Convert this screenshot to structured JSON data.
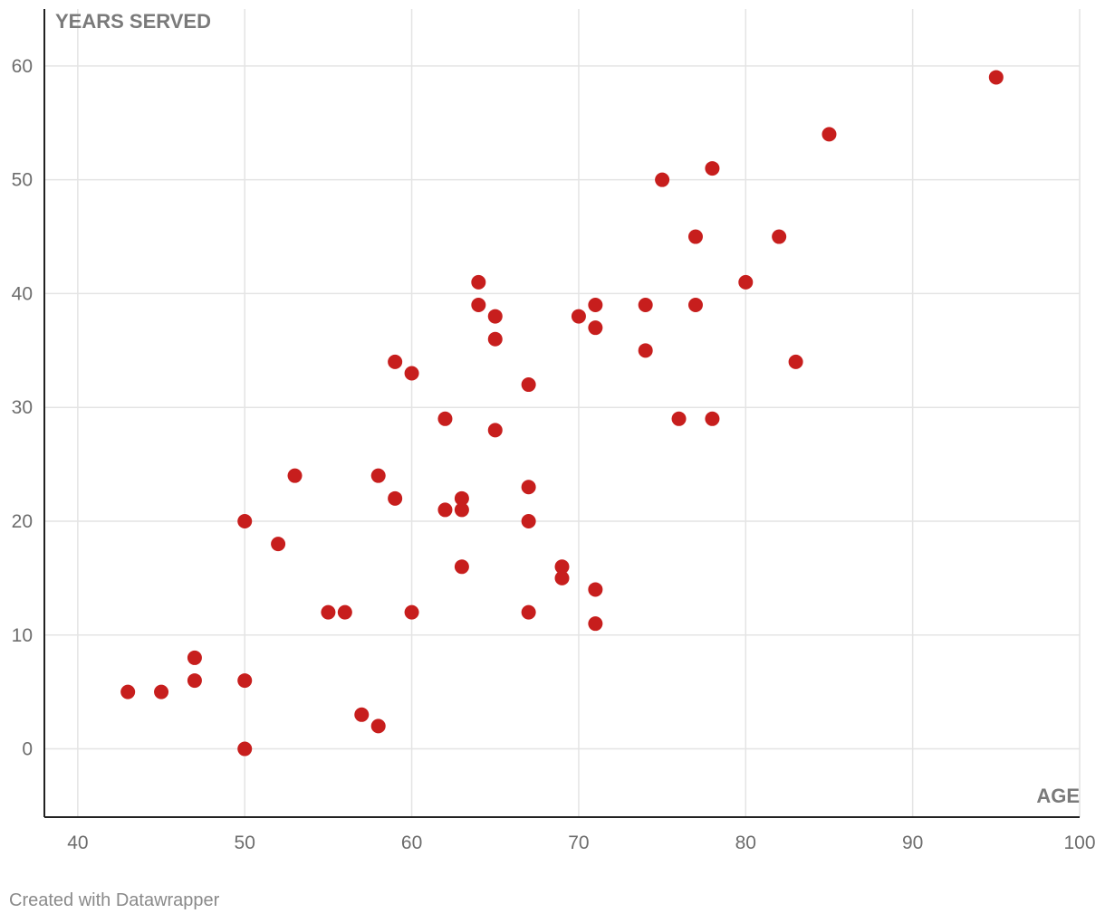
{
  "chart_data": {
    "type": "scatter",
    "title": "",
    "xlabel": "AGE",
    "ylabel": "YEARS SERVED",
    "xlim": [
      38,
      100
    ],
    "ylim": [
      -6,
      65
    ],
    "x_ticks": [
      40,
      50,
      60,
      70,
      80,
      90,
      100
    ],
    "y_ticks": [
      0,
      10,
      20,
      30,
      40,
      50,
      60
    ],
    "grid": true,
    "color": "#c71e1d",
    "points": [
      {
        "x": 43,
        "y": 5
      },
      {
        "x": 45,
        "y": 5
      },
      {
        "x": 47,
        "y": 8
      },
      {
        "x": 47,
        "y": 6
      },
      {
        "x": 50,
        "y": 20
      },
      {
        "x": 50,
        "y": 6
      },
      {
        "x": 50,
        "y": 0
      },
      {
        "x": 52,
        "y": 18
      },
      {
        "x": 53,
        "y": 24
      },
      {
        "x": 55,
        "y": 12
      },
      {
        "x": 56,
        "y": 12
      },
      {
        "x": 57,
        "y": 3
      },
      {
        "x": 58,
        "y": 24
      },
      {
        "x": 58,
        "y": 2
      },
      {
        "x": 59,
        "y": 34
      },
      {
        "x": 59,
        "y": 22
      },
      {
        "x": 60,
        "y": 33
      },
      {
        "x": 60,
        "y": 12
      },
      {
        "x": 62,
        "y": 29
      },
      {
        "x": 62,
        "y": 21
      },
      {
        "x": 63,
        "y": 22
      },
      {
        "x": 63,
        "y": 21
      },
      {
        "x": 63,
        "y": 16
      },
      {
        "x": 64,
        "y": 41
      },
      {
        "x": 64,
        "y": 39
      },
      {
        "x": 65,
        "y": 38
      },
      {
        "x": 65,
        "y": 36
      },
      {
        "x": 65,
        "y": 28
      },
      {
        "x": 67,
        "y": 32
      },
      {
        "x": 67,
        "y": 23
      },
      {
        "x": 67,
        "y": 20
      },
      {
        "x": 67,
        "y": 12
      },
      {
        "x": 69,
        "y": 16
      },
      {
        "x": 69,
        "y": 15
      },
      {
        "x": 70,
        "y": 38
      },
      {
        "x": 71,
        "y": 39
      },
      {
        "x": 71,
        "y": 37
      },
      {
        "x": 71,
        "y": 14
      },
      {
        "x": 71,
        "y": 11
      },
      {
        "x": 74,
        "y": 39
      },
      {
        "x": 74,
        "y": 35
      },
      {
        "x": 75,
        "y": 50
      },
      {
        "x": 76,
        "y": 29
      },
      {
        "x": 77,
        "y": 45
      },
      {
        "x": 77,
        "y": 39
      },
      {
        "x": 78,
        "y": 51
      },
      {
        "x": 78,
        "y": 29
      },
      {
        "x": 80,
        "y": 41
      },
      {
        "x": 82,
        "y": 45
      },
      {
        "x": 83,
        "y": 34
      },
      {
        "x": 85,
        "y": 54
      },
      {
        "x": 95,
        "y": 59
      }
    ]
  },
  "footer": {
    "credit": "Created with Datawrapper"
  }
}
